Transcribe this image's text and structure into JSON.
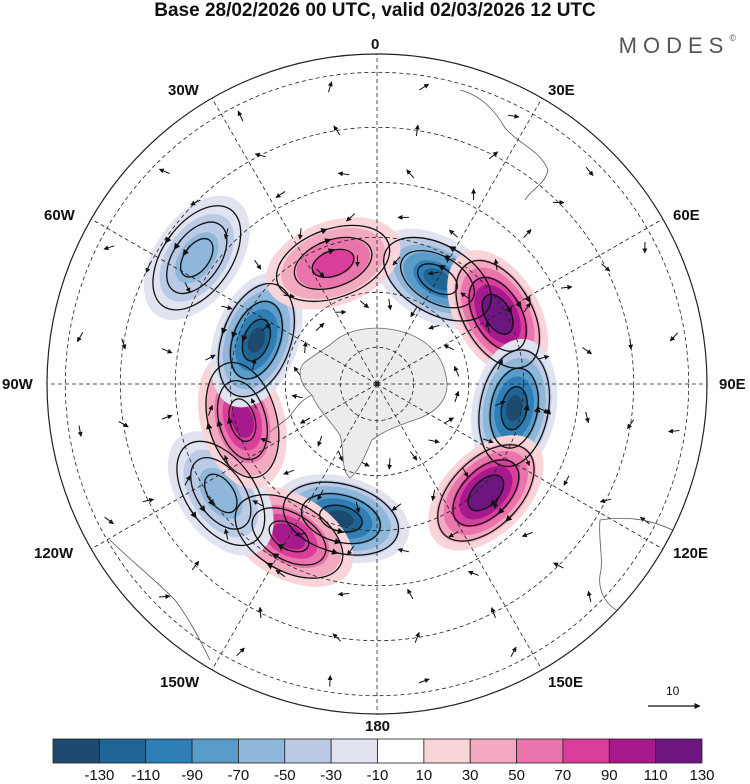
{
  "title": "Base 28/02/2026 00 UTC, valid 02/03/2026 12 UTC",
  "brand": "MODES",
  "brand_mark": "©",
  "longitude_labels": {
    "lon_0": "0",
    "lon_30e": "30E",
    "lon_60e": "60E",
    "lon_90e": "90E",
    "lon_120e": "120E",
    "lon_150e": "150E",
    "lon_180": "180",
    "lon_150w": "150W",
    "lon_120w": "120W",
    "lon_90w": "90W",
    "lon_60w": "60W",
    "lon_30w": "30W"
  },
  "reference_vector_label": "10",
  "colorbar": {
    "ticks": [
      "-130",
      "-110",
      "-90",
      "-70",
      "-50",
      "-30",
      "-10",
      "10",
      "30",
      "50",
      "70",
      "90",
      "110",
      "130"
    ],
    "colors": [
      "#1d4a6e",
      "#1f6594",
      "#2f7fb6",
      "#5a9cc9",
      "#8eb7da",
      "#bccbe5",
      "#e1e3f0",
      "#ffffff",
      "#f9d4d8",
      "#f3aac0",
      "#ea75ac",
      "#d93e9b",
      "#a61a8e",
      "#6e1680"
    ]
  },
  "map": {
    "projection": "south polar stereographic",
    "anomalies": [
      {
        "name": "negative-center-30e",
        "lon": 30,
        "lat": -57,
        "value": -110
      },
      {
        "name": "positive-center-60e",
        "lon": 60,
        "lat": -52,
        "value": 130
      },
      {
        "name": "negative-center-100e",
        "lon": 100,
        "lat": -52,
        "value": -130
      },
      {
        "name": "positive-center-130e",
        "lon": 135,
        "lat": -48,
        "value": 130
      },
      {
        "name": "negative-center-165w",
        "lon": -165,
        "lat": -52,
        "value": -130
      },
      {
        "name": "positive-center-155w",
        "lon": -150,
        "lat": -42,
        "value": 90
      },
      {
        "name": "negative-center-125w",
        "lon": -125,
        "lat": -38,
        "value": -50
      },
      {
        "name": "positive-center-105w",
        "lon": -105,
        "lat": -52,
        "value": 90
      },
      {
        "name": "negative-center-70w",
        "lon": -70,
        "lat": -55,
        "value": -130
      },
      {
        "name": "positive-center-20w",
        "lon": -20,
        "lat": -55,
        "value": 70
      },
      {
        "name": "negative-center-55w",
        "lon": -55,
        "lat": -30,
        "value": -50
      }
    ]
  }
}
